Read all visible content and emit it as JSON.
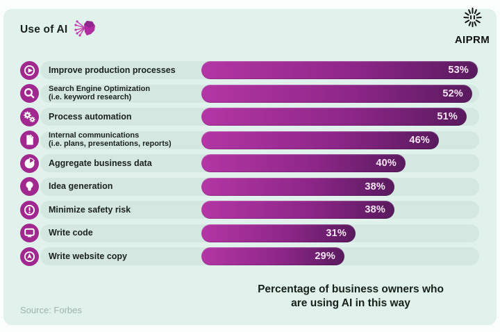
{
  "header": {
    "title": "Use of AI",
    "title_icon": "ai-head-icon",
    "logo_icon": "aiprm-logo-icon",
    "logo_text": "AIPRM"
  },
  "chart_data": {
    "type": "bar",
    "orientation": "horizontal",
    "title": "Use of AI",
    "categories": [
      "Improve production processes",
      "Search Engine Optimization (i.e. keyword research)",
      "Process automation",
      "Internal communications (i.e. plans, presentations, reports)",
      "Aggregate business data",
      "Idea generation",
      "Minimize safety risk",
      "Write code",
      "Write website copy"
    ],
    "values": [
      53,
      52,
      51,
      46,
      40,
      38,
      38,
      31,
      29
    ],
    "unit": "%",
    "xlim": [
      0,
      55
    ],
    "grid": false,
    "legend": "none",
    "caption": "Percentage of business owners who are using AI in this way",
    "source": "Source: Forbes"
  },
  "rows": [
    {
      "label": "Improve production processes",
      "sublabel": "",
      "value": 53,
      "display": "53%",
      "icon": "play-circle-icon"
    },
    {
      "label": "Search Engine Optimization",
      "sublabel": "(i.e. keyword research)",
      "value": 52,
      "display": "52%",
      "icon": "search-icon"
    },
    {
      "label": "Process automation",
      "sublabel": "",
      "value": 51,
      "display": "51%",
      "icon": "gears-icon"
    },
    {
      "label": "Internal communications",
      "sublabel": "(i.e. plans, presentations, reports)",
      "value": 46,
      "display": "46%",
      "icon": "document-icon"
    },
    {
      "label": "Aggregate business data",
      "sublabel": "",
      "value": 40,
      "display": "40%",
      "icon": "pie-chart-icon"
    },
    {
      "label": "Idea generation",
      "sublabel": "",
      "value": 38,
      "display": "38%",
      "icon": "lightbulb-icon"
    },
    {
      "label": "Minimize safety risk",
      "sublabel": "",
      "value": 38,
      "display": "38%",
      "icon": "alert-icon"
    },
    {
      "label": "Write code",
      "sublabel": "",
      "value": 31,
      "display": "31%",
      "icon": "monitor-icon"
    },
    {
      "label": "Write website copy",
      "sublabel": "",
      "value": 29,
      "display": "29%",
      "icon": "compass-arrow-icon"
    }
  ],
  "footer": {
    "caption_line1": "Percentage of business owners who",
    "caption_line2": "are using AI in this way",
    "source": "Source: Forbes"
  },
  "colors": {
    "card_background": "#e1f1eb",
    "track": "#d4e7e1",
    "bar_gradient_start": "#b336a4",
    "bar_gradient_end": "#591a5e",
    "icon_circle": "#a1288f",
    "text_dark": "#1b211e",
    "percent_text": "#f7e7f4",
    "source_text": "#9eb4ab"
  }
}
